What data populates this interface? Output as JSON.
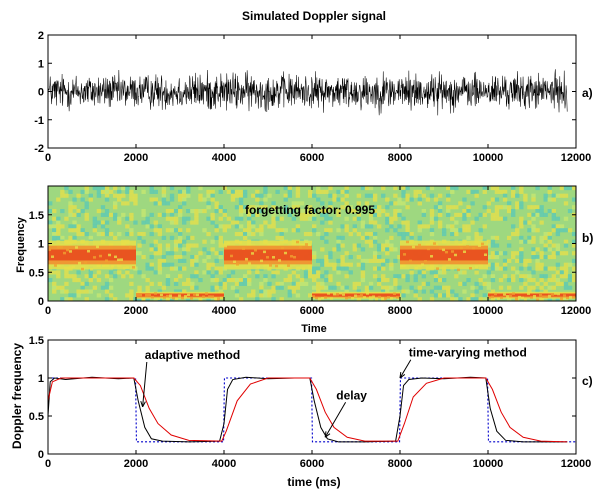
{
  "figure": {
    "background": "#ffffff"
  },
  "chart_data": [
    {
      "type": "line",
      "panel_label": "a)",
      "title": "Simulated Doppler signal",
      "xlabel": "",
      "ylabel": "",
      "xlim": [
        0,
        12000
      ],
      "ylim": [
        -2,
        2
      ],
      "xticks": [
        "0",
        "2000",
        "4000",
        "6000",
        "8000",
        "10000",
        "12000"
      ],
      "yticks": [
        "-2",
        "-1",
        "0",
        "1",
        "2"
      ],
      "series": [
        {
          "color": "#000000",
          "signal": "noise-like oscillation",
          "x_range": [
            0,
            11800
          ],
          "amplitude_envelope": [
            {
              "x": 0,
              "amp": 0.75
            },
            {
              "x": 2000,
              "amp": 0.7
            },
            {
              "x": 4000,
              "amp": 0.8
            },
            {
              "x": 6000,
              "amp": 0.7
            },
            {
              "x": 8000,
              "amp": 0.8
            },
            {
              "x": 10000,
              "amp": 0.7
            },
            {
              "x": 11800,
              "amp": 0.75
            }
          ]
        }
      ]
    },
    {
      "type": "heatmap",
      "panel_label": "b)",
      "annotation": "forgetting factor: 0.995",
      "xlabel": "Time",
      "ylabel": "Frequency",
      "xlim": [
        0,
        12000
      ],
      "ylim": [
        0,
        2
      ],
      "xticks": [
        "0",
        "2000",
        "4000",
        "6000",
        "8000",
        "10000",
        "12000"
      ],
      "yticks": [
        "0",
        "0.5",
        "1",
        "1.5"
      ],
      "colors": {
        "background": "#9ed880",
        "mid": "#e8e048",
        "high": "#e85020",
        "low": "#58c8b8"
      },
      "segments": [
        {
          "x": [
            0,
            2000
          ],
          "band_center": 0.8,
          "band_half_width": 0.25
        },
        {
          "x": [
            2000,
            4000
          ],
          "band_center": 0.1,
          "band_half_width": 0.06
        },
        {
          "x": [
            4000,
            6000
          ],
          "band_center": 0.8,
          "band_half_width": 0.25
        },
        {
          "x": [
            6000,
            8000
          ],
          "band_center": 0.1,
          "band_half_width": 0.06
        },
        {
          "x": [
            8000,
            10000
          ],
          "band_center": 0.8,
          "band_half_width": 0.25
        },
        {
          "x": [
            10000,
            12000
          ],
          "band_center": 0.1,
          "band_half_width": 0.06
        }
      ]
    },
    {
      "type": "line",
      "panel_label": "c)",
      "xlabel": "time (ms)",
      "ylabel": "Doppler frequency",
      "xlim": [
        0,
        12000
      ],
      "ylim": [
        0,
        1.5
      ],
      "xticks": [
        "0",
        "2000",
        "4000",
        "6000",
        "8000",
        "10000",
        "12000"
      ],
      "yticks": [
        "0",
        "0.5",
        "1",
        "1.5"
      ],
      "annotations": [
        {
          "text": "adaptive method",
          "x": 2200,
          "y": 1.25,
          "arrow_to": [
            2150,
            0.62
          ]
        },
        {
          "text": "time-varying method",
          "x": 8200,
          "y": 1.28,
          "arrow_to": [
            8000,
            1.0
          ]
        },
        {
          "text": "delay",
          "x": 6900,
          "y": 0.72,
          "arrow_to": [
            6300,
            0.22
          ]
        }
      ],
      "series": [
        {
          "style": "dotted",
          "color": "#0000cc",
          "x": [
            0,
            1990,
            2010,
            3990,
            4010,
            5990,
            6010,
            7990,
            8010,
            9990,
            10010,
            12000
          ],
          "y": [
            1.0,
            1.0,
            0.16,
            0.16,
            1.0,
            1.0,
            0.16,
            0.16,
            1.0,
            1.0,
            0.16,
            0.16
          ]
        },
        {
          "color": "#000000",
          "x": [
            0,
            50,
            150,
            400,
            1000,
            1600,
            1950,
            2050,
            2200,
            2350,
            2600,
            3200,
            3900,
            4000,
            4080,
            4200,
            4500,
            5000,
            5600,
            5950,
            6050,
            6200,
            6350,
            6600,
            7200,
            7900,
            8000,
            8080,
            8200,
            8500,
            9000,
            9600,
            9950,
            10050,
            10200,
            10400,
            10800,
            11500,
            11800
          ],
          "y": [
            0.5,
            0.95,
            1.0,
            0.98,
            1.01,
            0.99,
            1.0,
            0.7,
            0.35,
            0.2,
            0.17,
            0.16,
            0.17,
            0.4,
            0.85,
            0.98,
            1.01,
            0.99,
            1.0,
            1.0,
            0.7,
            0.35,
            0.2,
            0.16,
            0.16,
            0.17,
            0.5,
            0.9,
            0.98,
            1.0,
            0.99,
            1.01,
            1.0,
            0.6,
            0.3,
            0.18,
            0.16,
            0.16,
            0.16
          ]
        },
        {
          "color": "#e00000",
          "x": [
            0,
            100,
            300,
            1000,
            1950,
            2100,
            2300,
            2500,
            2800,
            3200,
            3950,
            4050,
            4300,
            4600,
            5000,
            5950,
            6100,
            6300,
            6500,
            6800,
            7200,
            7950,
            8100,
            8300,
            8600,
            9000,
            9950,
            10100,
            10300,
            10500,
            10800,
            11200,
            11800
          ],
          "y": [
            0.7,
            0.95,
            1.0,
            1.0,
            1.0,
            0.9,
            0.6,
            0.4,
            0.25,
            0.18,
            0.17,
            0.3,
            0.7,
            0.92,
            1.0,
            1.0,
            0.85,
            0.55,
            0.35,
            0.22,
            0.17,
            0.17,
            0.4,
            0.75,
            0.93,
            1.0,
            1.0,
            0.85,
            0.55,
            0.35,
            0.22,
            0.17,
            0.16
          ]
        }
      ]
    }
  ]
}
